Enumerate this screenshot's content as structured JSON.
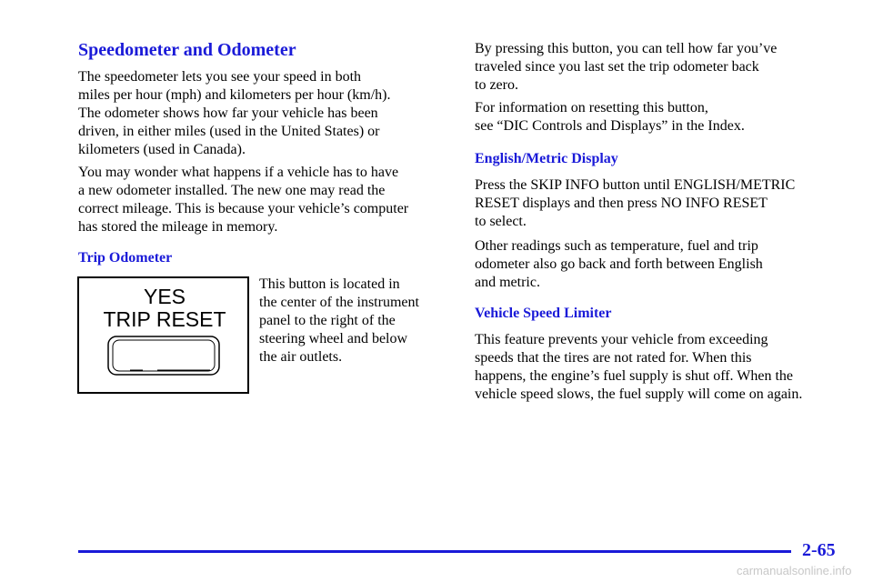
{
  "left": {
    "title": "Speedometer and Odometer",
    "paragraphs": [
      [
        "The speedometer lets you see your speed in both",
        "miles per hour (mph) and kilometers per hour (km/h).",
        "The odometer shows how far your vehicle has been",
        "driven, in either miles (used in the United States) or",
        "kilometers (used in Canada)."
      ],
      [
        "You may wonder what happens if a vehicle has to have",
        "a new odometer installed. The new one may read the",
        "correct mileage. This is because your vehicle’s computer",
        "has stored the mileage in memory."
      ]
    ],
    "subheading": "Trip Odometer",
    "figure": {
      "line1": "YES",
      "line2": "TRIP RESET"
    },
    "figure_caption": [
      "This button is located in",
      "the center of the instrument",
      "panel to the right of the",
      "steering wheel and below",
      "the air outlets."
    ]
  },
  "right": {
    "paragraphs": [
      [
        "By pressing this button, you can tell how far you’ve",
        "traveled since you last set the trip odometer back",
        "to zero."
      ],
      [
        "For information on resetting this button,",
        "see “DIC Controls and Displays” in the Index."
      ]
    ],
    "section1": {
      "heading": "English/Metric Display",
      "paragraphs": [
        [
          "Press the SKIP INFO button until ENGLISH/METRIC",
          "RESET displays and then press NO INFO RESET",
          "to select."
        ],
        [
          "Other readings such as temperature, fuel and trip",
          "odometer also go back and forth between English",
          "and metric."
        ]
      ]
    },
    "section2": {
      "heading": "Vehicle Speed Limiter",
      "paragraphs": [
        [
          "This feature prevents your vehicle from exceeding",
          "speeds that the tires are not rated for. When this",
          "happens, the engine’s fuel supply is shut off. When the",
          "vehicle speed slows, the fuel supply will come on again."
        ]
      ]
    }
  },
  "footer": {
    "page_number": "2-65",
    "watermark": "carmanualsonline.info"
  }
}
